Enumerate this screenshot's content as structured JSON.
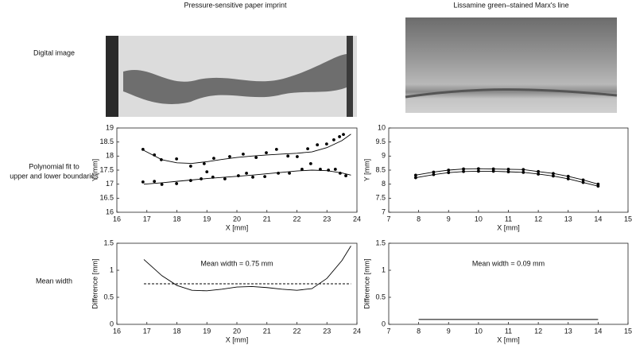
{
  "column_titles": [
    "Pressure-sensitive paper imprint",
    "Lissamine green–stained Marx's line"
  ],
  "row_labels": [
    "Digital image",
    [
      "Polynomial fit to",
      "upper and lower boundaries"
    ],
    "Mean width"
  ],
  "chart_data": [
    {
      "type": "line",
      "xlabel": "X [mm]",
      "ylabel": "Y [mm]",
      "xlim": [
        16,
        24
      ],
      "xticks": [
        16,
        17,
        18,
        19,
        20,
        21,
        22,
        23,
        24
      ],
      "ylim": [
        16,
        19
      ],
      "yticks": [
        16,
        16.5,
        17,
        17.5,
        18,
        18.5,
        19
      ],
      "series": [
        {
          "style": "points",
          "color": "#000",
          "x": [
            16.87,
            17.25,
            17.48,
            17.99,
            18.46,
            18.91,
            19.23,
            19.76,
            20.21,
            20.64,
            20.98,
            21.32,
            21.7,
            22.01,
            22.36,
            22.68,
            22.99,
            23.23,
            23.42,
            23.55
          ],
          "values": [
            18.24,
            18.04,
            17.87,
            17.9,
            17.64,
            17.73,
            17.92,
            17.98,
            18.07,
            17.95,
            18.12,
            18.24,
            18.0,
            17.98,
            18.26,
            18.4,
            18.43,
            18.58,
            18.69,
            18.77
          ]
        },
        {
          "style": "points",
          "color": "#000",
          "x": [
            16.87,
            17.25,
            17.5,
            17.99,
            18.46,
            18.81,
            19.0,
            19.2,
            19.6,
            20.05,
            20.32,
            20.53,
            20.93,
            21.38,
            21.75,
            22.17,
            22.46,
            22.78,
            23.05,
            23.28,
            23.44,
            23.63
          ],
          "values": [
            17.08,
            17.1,
            16.99,
            17.02,
            17.13,
            17.19,
            17.44,
            17.25,
            17.19,
            17.3,
            17.39,
            17.25,
            17.27,
            17.39,
            17.39,
            17.53,
            17.73,
            17.53,
            17.5,
            17.53,
            17.39,
            17.3
          ]
        },
        {
          "style": "line",
          "color": "#000",
          "x": [
            16.9,
            17.5,
            18,
            18.5,
            19,
            19.5,
            20,
            20.5,
            21,
            21.5,
            22,
            22.5,
            23,
            23.5,
            23.8
          ],
          "values": [
            18.2,
            17.87,
            17.76,
            17.74,
            17.8,
            17.88,
            17.95,
            18.0,
            18.04,
            18.07,
            18.1,
            18.15,
            18.3,
            18.55,
            18.78
          ]
        },
        {
          "style": "line",
          "color": "#000",
          "x": [
            16.9,
            17.5,
            18,
            18.5,
            19,
            19.5,
            20,
            20.5,
            21,
            21.5,
            22,
            22.5,
            23,
            23.5,
            23.8
          ],
          "values": [
            17.0,
            17.05,
            17.1,
            17.15,
            17.2,
            17.24,
            17.28,
            17.32,
            17.37,
            17.42,
            17.47,
            17.5,
            17.48,
            17.4,
            17.32
          ]
        }
      ]
    },
    {
      "type": "line",
      "xlabel": "X [mm]",
      "ylabel": "Y [mm]",
      "xlim": [
        7,
        15
      ],
      "xticks": [
        7,
        8,
        9,
        10,
        11,
        12,
        13,
        14,
        15
      ],
      "ylim": [
        7,
        10
      ],
      "yticks": [
        7,
        7.5,
        8,
        8.5,
        9,
        9.5,
        10
      ],
      "series": [
        {
          "style": "line-points",
          "color": "#000",
          "x": [
            7.9,
            8.5,
            9,
            9.5,
            10,
            10.5,
            11,
            11.5,
            12,
            12.5,
            13,
            13.5,
            14
          ],
          "values": [
            8.32,
            8.43,
            8.5,
            8.54,
            8.55,
            8.54,
            8.53,
            8.52,
            8.45,
            8.38,
            8.28,
            8.15,
            8.0
          ]
        },
        {
          "style": "line-points",
          "color": "#000",
          "x": [
            7.9,
            8.5,
            9,
            9.5,
            10,
            10.5,
            11,
            11.5,
            12,
            12.5,
            13,
            13.5,
            14
          ],
          "values": [
            8.23,
            8.34,
            8.41,
            8.45,
            8.46,
            8.46,
            8.44,
            8.42,
            8.36,
            8.29,
            8.19,
            8.06,
            7.93
          ]
        }
      ]
    },
    {
      "type": "line",
      "xlabel": "X [mm]",
      "ylabel": "Difference [mm]",
      "annotation": "Mean width = 0.75 mm",
      "xlim": [
        16,
        24
      ],
      "xticks": [
        16,
        17,
        18,
        19,
        20,
        21,
        22,
        23,
        24
      ],
      "ylim": [
        0,
        1.5
      ],
      "yticks": [
        0,
        0.5,
        1,
        1.5
      ],
      "series": [
        {
          "style": "line",
          "color": "#000",
          "x": [
            16.9,
            17.2,
            17.5,
            18,
            18.5,
            19,
            19.5,
            20,
            20.5,
            21,
            21.5,
            22,
            22.5,
            23,
            23.5,
            23.8
          ],
          "values": [
            1.2,
            1.05,
            0.9,
            0.72,
            0.63,
            0.62,
            0.65,
            0.69,
            0.7,
            0.68,
            0.65,
            0.63,
            0.66,
            0.85,
            1.18,
            1.45
          ]
        },
        {
          "style": "dashed",
          "color": "#000",
          "x": [
            16.9,
            23.8
          ],
          "values": [
            0.75,
            0.75
          ]
        }
      ]
    },
    {
      "type": "line",
      "xlabel": "X [mm]",
      "ylabel": "Difference [mm]",
      "annotation": "Mean width = 0.09 mm",
      "xlim": [
        7,
        15
      ],
      "xticks": [
        7,
        8,
        9,
        10,
        11,
        12,
        13,
        14,
        15
      ],
      "ylim": [
        0,
        1.5
      ],
      "yticks": [
        0,
        0.5,
        1,
        1.5
      ],
      "series": [
        {
          "style": "line",
          "color": "#000",
          "x": [
            8,
            14
          ],
          "values": [
            0.09,
            0.09
          ]
        }
      ]
    }
  ]
}
